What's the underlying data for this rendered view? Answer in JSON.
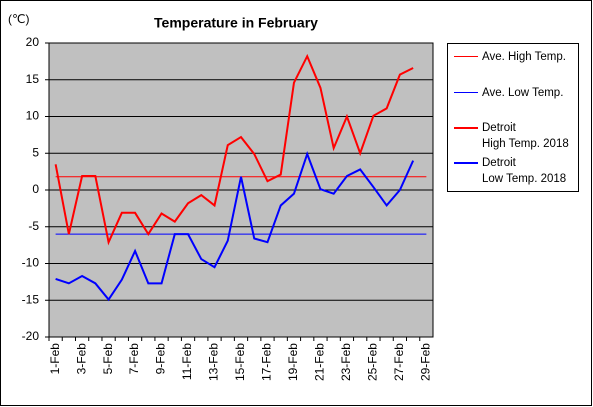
{
  "chart_data": {
    "type": "line",
    "title": "Temperature in February",
    "y_label": "(℃)",
    "categories": [
      "1-Feb",
      null,
      "3-Feb",
      null,
      "5-Feb",
      null,
      "7-Feb",
      null,
      "9-Feb",
      null,
      "11-Feb",
      null,
      "13-Feb",
      null,
      "15-Feb",
      null,
      "17-Feb",
      null,
      "19-Feb",
      null,
      "21-Feb",
      null,
      "23-Feb",
      null,
      "25-Feb",
      null,
      "27-Feb",
      null,
      "29-Feb"
    ],
    "ylim": [
      -20,
      20
    ],
    "yticks": [
      -20,
      -15,
      -10,
      -5,
      0,
      5,
      10,
      15,
      20
    ],
    "grid": true,
    "series": [
      {
        "name": "Ave. High Temp.",
        "color": "#ff0000",
        "width": 1,
        "values": [
          1.8,
          1.8,
          1.8,
          1.8,
          1.8,
          1.8,
          1.8,
          1.8,
          1.8,
          1.8,
          1.8,
          1.8,
          1.8,
          1.8,
          1.8,
          1.8,
          1.8,
          1.8,
          1.8,
          1.8,
          1.8,
          1.8,
          1.8,
          1.8,
          1.8,
          1.8,
          1.8,
          1.8,
          1.8
        ]
      },
      {
        "name": "Ave. Low Temp.",
        "color": "#0000ff",
        "width": 1,
        "values": [
          -6,
          -6,
          -6,
          -6,
          -6,
          -6,
          -6,
          -6,
          -6,
          -6,
          -6,
          -6,
          -6,
          -6,
          -6,
          -6,
          -6,
          -6,
          -6,
          -6,
          -6,
          -6,
          -6,
          -6,
          -6,
          -6,
          -6,
          -6,
          -6
        ]
      },
      {
        "name": "Detroit\nHigh Temp. 2018",
        "color": "#ff0000",
        "width": 2,
        "values": [
          3.5,
          -6,
          1.9,
          1.9,
          -7.1,
          -3.1,
          -3.1,
          -6,
          -3.2,
          -4.3,
          -1.8,
          -0.7,
          -2.1,
          6.1,
          7.2,
          4.9,
          1.2,
          2.1,
          14.6,
          18.2,
          13.9,
          5.7,
          10,
          5,
          10.1,
          11.1,
          15.7,
          16.6,
          null
        ]
      },
      {
        "name": "Detroit\nLow Temp. 2018",
        "color": "#0000ff",
        "width": 2,
        "values": [
          -12.1,
          -12.7,
          -11.7,
          -12.7,
          -14.9,
          -12.2,
          -8.3,
          -12.7,
          -12.7,
          -6,
          -6,
          -9.4,
          -10.5,
          -6.9,
          1.8,
          -6.6,
          -7.1,
          -2.1,
          -0.5,
          4.9,
          0.1,
          -0.5,
          1.9,
          2.8,
          0.4,
          -2.1,
          0,
          4,
          null
        ]
      }
    ]
  }
}
